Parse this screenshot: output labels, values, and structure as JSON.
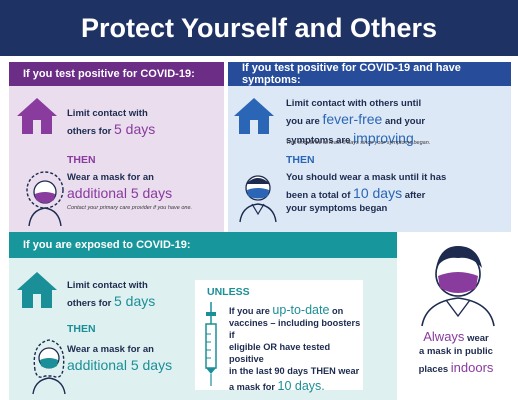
{
  "title": "Protect Yourself and Others",
  "positive": {
    "heading": "If you test positive for COVID-19:",
    "limit_a": "Limit contact with",
    "limit_b": "others for",
    "limit_days": "5 days",
    "then": "THEN",
    "mask_a": "Wear a mask for an",
    "mask_b": "additional 5 days",
    "note": "Contact your primary care provider if you have one."
  },
  "symptoms": {
    "heading": "If you test positive for COVID-19 and have symptoms:",
    "line1": "Limit contact with others until",
    "line2_a": "you are",
    "line2_b": "fever-free",
    "line2_c": "and your",
    "line3_a": "symptoms are",
    "line3_b": "improving",
    "note": "This should be at least 5 days since your symptoms began.",
    "then": "THEN",
    "mask1": "You should wear a mask until it has",
    "mask2_a": "been a total of",
    "mask2_b": "10 days",
    "mask2_c": "after",
    "mask3": "your symptoms began"
  },
  "exposed": {
    "heading": "If you are exposed to COVID-19:",
    "limit_a": "Limit contact with",
    "limit_b": "others for",
    "limit_days": "5 days",
    "then": "THEN",
    "mask_a": "Wear a mask for an",
    "mask_b": "additional 5 days",
    "unless": "UNLESS",
    "u1_a": "If you are",
    "u1_b": "up-to-date",
    "u1_c": "on",
    "u2": "vaccines – including boosters if",
    "u3": "eligible OR have tested positive",
    "u4": "in the last 90 days THEN wear",
    "u5_a": "a mask for",
    "u5_b": "10 days."
  },
  "always": {
    "a1": "Always",
    "a2": "wear",
    "a3": "a mask in public",
    "a4": "places",
    "a5": "indoors"
  },
  "colors": {
    "title_bg": "#1e3264",
    "purple": "#6b2d86",
    "blue": "#264c9a",
    "teal": "#17979b"
  }
}
